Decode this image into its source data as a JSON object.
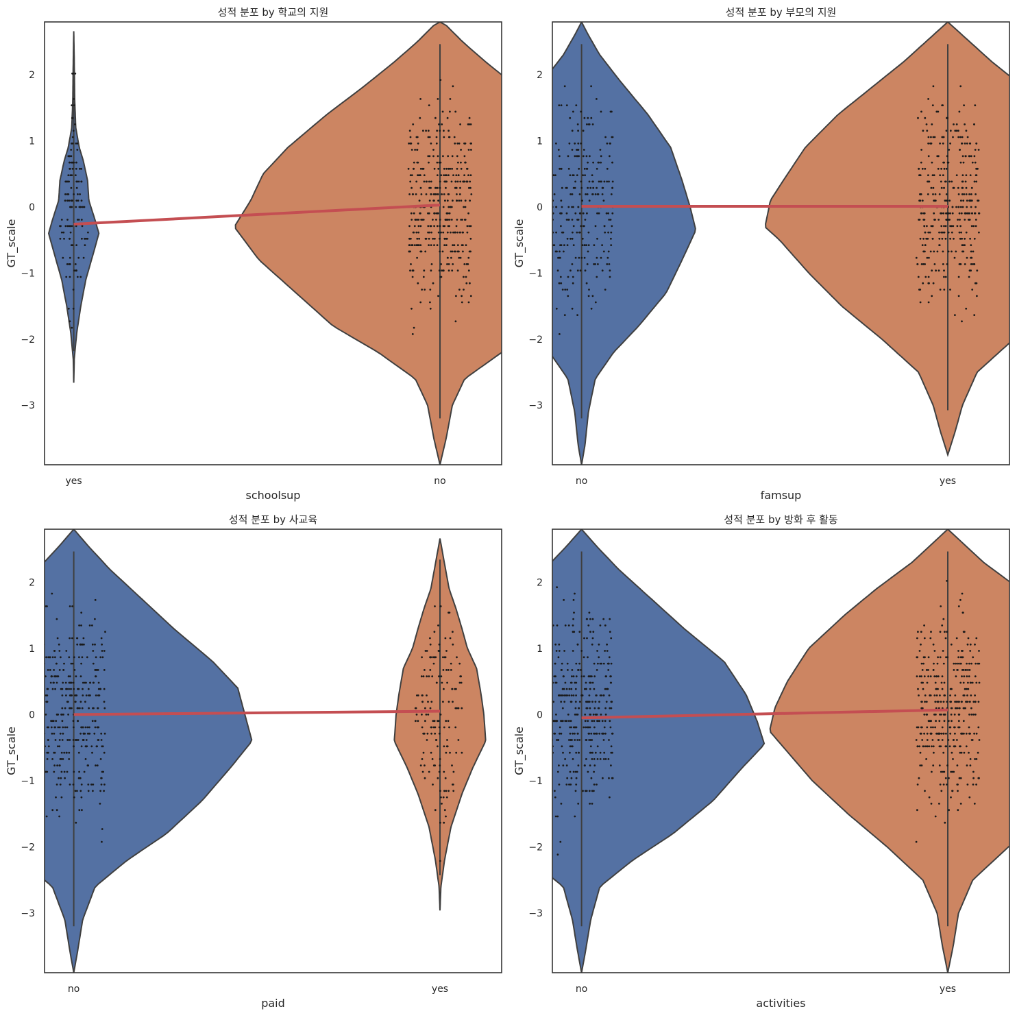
{
  "chart_data": [
    {
      "type": "violin",
      "title": "성적 분포 by 학교의 지원",
      "xlabel": "schoolsup",
      "ylabel": "GT_scale",
      "ylim": [
        -3.9,
        2.8
      ],
      "yticks": [
        -3,
        -2,
        -1,
        0,
        1,
        2
      ],
      "categories": [
        "yes",
        "no"
      ],
      "colors": [
        "#5471a3",
        "#cc8562"
      ],
      "means": [
        -0.26,
        0.03
      ],
      "mean_line_color": "#c44e52",
      "violins": [
        {
          "category": "yes",
          "min": -2.66,
          "max": 2.66,
          "max_half_width_frac": 0.055,
          "profile": [
            [
              -2.66,
              0
            ],
            [
              -2.3,
              0.02
            ],
            [
              -1.9,
              0.12
            ],
            [
              -1.5,
              0.28
            ],
            [
              -1.1,
              0.48
            ],
            [
              -0.7,
              0.78
            ],
            [
              -0.4,
              1.0
            ],
            [
              -0.2,
              0.85
            ],
            [
              0.1,
              0.6
            ],
            [
              0.4,
              0.55
            ],
            [
              0.7,
              0.38
            ],
            [
              0.9,
              0.22
            ],
            [
              1.2,
              0.08
            ],
            [
              1.6,
              0.04
            ],
            [
              2.2,
              0.02
            ],
            [
              2.66,
              0
            ]
          ]
        },
        {
          "category": "no",
          "min": -3.9,
          "max": 2.8,
          "max_half_width_frac": 0.45,
          "profile": [
            [
              -3.9,
              0
            ],
            [
              -3.5,
              0.03
            ],
            [
              -3.0,
              0.06
            ],
            [
              -2.6,
              0.12
            ],
            [
              -2.2,
              0.3
            ],
            [
              -1.8,
              0.52
            ],
            [
              -1.3,
              0.7
            ],
            [
              -0.8,
              0.88
            ],
            [
              -0.3,
              1.0
            ],
            [
              0.1,
              0.92
            ],
            [
              0.5,
              0.86
            ],
            [
              0.9,
              0.74
            ],
            [
              1.4,
              0.55
            ],
            [
              1.8,
              0.38
            ],
            [
              2.2,
              0.22
            ],
            [
              2.5,
              0.11
            ],
            [
              2.75,
              0.03
            ],
            [
              2.8,
              0
            ]
          ]
        }
      ]
    },
    {
      "type": "violin",
      "title": "성적 분포 by 부모의 지원",
      "xlabel": "famsup",
      "ylabel": "GT_scale",
      "ylim": [
        -3.9,
        2.8
      ],
      "yticks": [
        -3,
        -2,
        -1,
        0,
        1,
        2
      ],
      "categories": [
        "no",
        "yes"
      ],
      "colors": [
        "#5471a3",
        "#cc8562"
      ],
      "means": [
        0.01,
        0.01
      ],
      "mean_line_color": "#c44e52",
      "violins": [
        {
          "category": "no",
          "min": -3.9,
          "max": 2.8,
          "max_half_width_frac": 0.25,
          "profile": [
            [
              -3.9,
              0
            ],
            [
              -3.6,
              0.03
            ],
            [
              -3.1,
              0.06
            ],
            [
              -2.6,
              0.12
            ],
            [
              -2.2,
              0.28
            ],
            [
              -1.8,
              0.5
            ],
            [
              -1.3,
              0.74
            ],
            [
              -0.8,
              0.88
            ],
            [
              -0.35,
              1.0
            ],
            [
              0.0,
              0.95
            ],
            [
              0.4,
              0.88
            ],
            [
              0.9,
              0.78
            ],
            [
              1.4,
              0.58
            ],
            [
              1.9,
              0.34
            ],
            [
              2.3,
              0.16
            ],
            [
              2.6,
              0.06
            ],
            [
              2.8,
              0
            ]
          ]
        },
        {
          "category": "yes",
          "min": -3.75,
          "max": 2.8,
          "max_half_width_frac": 0.4,
          "profile": [
            [
              -3.75,
              0
            ],
            [
              -3.4,
              0.04
            ],
            [
              -3.0,
              0.08
            ],
            [
              -2.5,
              0.16
            ],
            [
              -2.0,
              0.36
            ],
            [
              -1.5,
              0.58
            ],
            [
              -1.0,
              0.76
            ],
            [
              -0.5,
              0.92
            ],
            [
              -0.3,
              1.0
            ],
            [
              0.1,
              0.97
            ],
            [
              0.4,
              0.9
            ],
            [
              0.9,
              0.78
            ],
            [
              1.4,
              0.6
            ],
            [
              1.8,
              0.42
            ],
            [
              2.2,
              0.24
            ],
            [
              2.55,
              0.1
            ],
            [
              2.8,
              0
            ]
          ]
        }
      ]
    },
    {
      "type": "violin",
      "title": "성적 분포 by 사교육",
      "xlabel": "paid",
      "ylabel": "GT_scale",
      "ylim": [
        -3.9,
        2.8
      ],
      "yticks": [
        -3,
        -2,
        -1,
        0,
        1,
        2
      ],
      "categories": [
        "no",
        "yes"
      ],
      "colors": [
        "#5471a3",
        "#cc8562"
      ],
      "means": [
        0.0,
        0.05
      ],
      "mean_line_color": "#c44e52",
      "violins": [
        {
          "category": "no",
          "min": -3.9,
          "max": 2.8,
          "max_half_width_frac": 0.39,
          "profile": [
            [
              -3.9,
              0
            ],
            [
              -3.6,
              0.02
            ],
            [
              -3.1,
              0.05
            ],
            [
              -2.6,
              0.12
            ],
            [
              -2.2,
              0.3
            ],
            [
              -1.8,
              0.52
            ],
            [
              -1.3,
              0.72
            ],
            [
              -0.8,
              0.88
            ],
            [
              -0.4,
              1.0
            ],
            [
              0.0,
              0.96
            ],
            [
              0.4,
              0.92
            ],
            [
              0.8,
              0.78
            ],
            [
              1.3,
              0.56
            ],
            [
              1.8,
              0.36
            ],
            [
              2.2,
              0.2
            ],
            [
              2.55,
              0.08
            ],
            [
              2.8,
              0
            ]
          ]
        },
        {
          "category": "yes",
          "min": -2.96,
          "max": 2.66,
          "max_half_width_frac": 0.1,
          "profile": [
            [
              -2.96,
              0
            ],
            [
              -2.6,
              0.02
            ],
            [
              -2.2,
              0.1
            ],
            [
              -1.7,
              0.24
            ],
            [
              -1.2,
              0.48
            ],
            [
              -0.8,
              0.72
            ],
            [
              -0.4,
              1.0
            ],
            [
              0.0,
              0.96
            ],
            [
              0.3,
              0.9
            ],
            [
              0.7,
              0.8
            ],
            [
              1.0,
              0.6
            ],
            [
              1.3,
              0.48
            ],
            [
              1.6,
              0.35
            ],
            [
              1.9,
              0.2
            ],
            [
              2.2,
              0.12
            ],
            [
              2.66,
              0
            ]
          ]
        }
      ]
    },
    {
      "type": "violin",
      "title": "성적 분포 by 방화 후 활동",
      "xlabel": "activities",
      "ylabel": "GT_scale",
      "ylim": [
        -3.9,
        2.8
      ],
      "yticks": [
        -3,
        -2,
        -1,
        0,
        1,
        2
      ],
      "categories": [
        "no",
        "yes"
      ],
      "colors": [
        "#5471a3",
        "#cc8562"
      ],
      "means": [
        -0.05,
        0.07
      ],
      "mean_line_color": "#c44e52",
      "violins": [
        {
          "category": "no",
          "min": -3.9,
          "max": 2.8,
          "max_half_width_frac": 0.4,
          "profile": [
            [
              -3.9,
              0
            ],
            [
              -3.6,
              0.02
            ],
            [
              -3.1,
              0.05
            ],
            [
              -2.6,
              0.1
            ],
            [
              -2.2,
              0.28
            ],
            [
              -1.8,
              0.5
            ],
            [
              -1.3,
              0.72
            ],
            [
              -0.8,
              0.88
            ],
            [
              -0.45,
              1.0
            ],
            [
              -0.1,
              0.96
            ],
            [
              0.3,
              0.9
            ],
            [
              0.8,
              0.78
            ],
            [
              1.3,
              0.56
            ],
            [
              1.8,
              0.36
            ],
            [
              2.2,
              0.2
            ],
            [
              2.55,
              0.08
            ],
            [
              2.8,
              0
            ]
          ]
        },
        {
          "category": "yes",
          "min": -3.9,
          "max": 2.8,
          "max_half_width_frac": 0.39,
          "profile": [
            [
              -3.9,
              0
            ],
            [
              -3.5,
              0.03
            ],
            [
              -3.0,
              0.06
            ],
            [
              -2.5,
              0.14
            ],
            [
              -2.0,
              0.34
            ],
            [
              -1.5,
              0.56
            ],
            [
              -1.0,
              0.76
            ],
            [
              -0.5,
              0.92
            ],
            [
              -0.25,
              1.0
            ],
            [
              0.1,
              0.97
            ],
            [
              0.5,
              0.9
            ],
            [
              1.0,
              0.78
            ],
            [
              1.5,
              0.58
            ],
            [
              1.9,
              0.4
            ],
            [
              2.3,
              0.2
            ],
            [
              2.6,
              0.08
            ],
            [
              2.8,
              0
            ]
          ]
        }
      ]
    }
  ]
}
